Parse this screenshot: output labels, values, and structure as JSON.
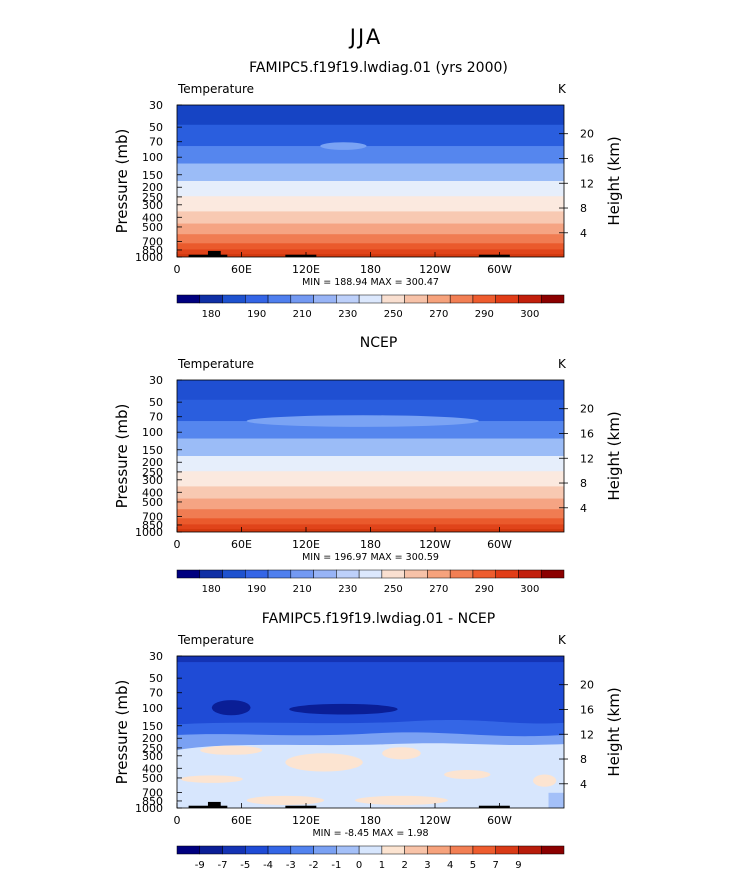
{
  "page": {
    "title": "JJA"
  },
  "chart_data": [
    {
      "type": "heatmap",
      "title": "FAMIPC5.f19f19.lwdiag.01 (yrs 2000)",
      "field_label": "Temperature",
      "units": "K",
      "ylabel": "Pressure (mb)",
      "y2label": "Height (km)",
      "xticks": [
        "0",
        "60E",
        "120E",
        "180",
        "120W",
        "60W"
      ],
      "yticks": [
        "30",
        "50",
        "70",
        "100",
        "150",
        "200",
        "250",
        "300",
        "400",
        "500",
        "700",
        "850",
        "1000"
      ],
      "y2ticks": [
        "20",
        "16",
        "12",
        "8",
        "4"
      ],
      "stats": "MIN = 188.94  MAX = 300.47",
      "colorbar": {
        "labels": [
          "180",
          "190",
          "210",
          "230",
          "250",
          "270",
          "290",
          "300"
        ],
        "colors": [
          "#00007f",
          "#0f2fa5",
          "#1e52cf",
          "#3465e6",
          "#4f7fee",
          "#7399f2",
          "#98b4f6",
          "#bdd0fa",
          "#dce8fd",
          "#f9dfd0",
          "#f7c2a8",
          "#f6a27c",
          "#f27f54",
          "#ee5c2e",
          "#e13d17",
          "#c21f0c",
          "#8b0000"
        ]
      },
      "zonal_levels": [
        [
          0.0,
          16
        ],
        [
          0.13,
          18
        ],
        [
          0.27,
          20
        ],
        [
          0.385,
          22
        ],
        [
          0.5,
          24
        ],
        [
          0.6,
          25
        ],
        [
          0.7,
          26
        ],
        [
          0.78,
          27
        ],
        [
          0.85,
          28
        ],
        [
          0.91,
          29
        ],
        [
          0.95,
          30
        ],
        [
          0.98,
          31
        ],
        [
          1.0,
          31
        ]
      ],
      "anomalies": [
        {
          "x": 0.43,
          "y": 0.27,
          "rx": 0.06,
          "ry": 0.012,
          "level": 21
        }
      ]
    },
    {
      "type": "heatmap",
      "title": "NCEP",
      "field_label": "Temperature",
      "units": "K",
      "ylabel": "Pressure (mb)",
      "y2label": "Height (km)",
      "xticks": [
        "0",
        "60E",
        "120E",
        "180",
        "120W",
        "60W"
      ],
      "yticks": [
        "30",
        "50",
        "70",
        "100",
        "150",
        "200",
        "250",
        "300",
        "400",
        "500",
        "700",
        "850",
        "1000"
      ],
      "y2ticks": [
        "20",
        "16",
        "12",
        "8",
        "4"
      ],
      "stats": "MIN = 196.97  MAX = 300.59",
      "colorbar": {
        "labels": [
          "180",
          "190",
          "210",
          "230",
          "250",
          "270",
          "290",
          "300"
        ],
        "colors": [
          "#00007f",
          "#0f2fa5",
          "#1e52cf",
          "#3465e6",
          "#4f7fee",
          "#7399f2",
          "#98b4f6",
          "#bdd0fa",
          "#dce8fd",
          "#f9dfd0",
          "#f7c2a8",
          "#f6a27c",
          "#f27f54",
          "#ee5c2e",
          "#e13d17",
          "#c21f0c",
          "#8b0000"
        ]
      },
      "zonal_levels": [
        [
          0.0,
          17
        ],
        [
          0.13,
          18
        ],
        [
          0.27,
          20
        ],
        [
          0.385,
          22
        ],
        [
          0.5,
          24
        ],
        [
          0.6,
          25
        ],
        [
          0.7,
          26
        ],
        [
          0.78,
          27
        ],
        [
          0.85,
          28
        ],
        [
          0.91,
          29
        ],
        [
          0.95,
          30
        ],
        [
          0.98,
          31
        ],
        [
          1.0,
          31
        ]
      ],
      "anomalies": [
        {
          "x": 0.48,
          "y": 0.27,
          "rx": 0.3,
          "ry": 0.025,
          "level": 21
        }
      ]
    },
    {
      "type": "heatmap",
      "title": "FAMIPC5.f19f19.lwdiag.01 - NCEP",
      "field_label": "Temperature",
      "units": "K",
      "ylabel": "Pressure (mb)",
      "y2label": "Height (km)",
      "xticks": [
        "0",
        "60E",
        "120E",
        "180",
        "120W",
        "60W"
      ],
      "yticks": [
        "30",
        "50",
        "70",
        "100",
        "150",
        "200",
        "250",
        "300",
        "400",
        "500",
        "700",
        "850",
        "1000"
      ],
      "y2ticks": [
        "20",
        "16",
        "12",
        "8",
        "4"
      ],
      "stats": "MIN =  -8.45  MAX =    1.98",
      "colorbar": {
        "labels": [
          "-9",
          "-7",
          "-5",
          "-4",
          "-3",
          "-2",
          "-1",
          "0",
          "1",
          "2",
          "3",
          "4",
          "5",
          "7",
          "9"
        ],
        "colors": [
          "#00007f",
          "#0a1e96",
          "#1433b4",
          "#1f4bd6",
          "#3466e6",
          "#5283ef",
          "#7aa1f3",
          "#a4c0f8",
          "#d7e6fd",
          "#fce4d1",
          "#f8c3a8",
          "#f6a27c",
          "#f27f54",
          "#ee5c2e",
          "#d93a16",
          "#b81c0b",
          "#8b0000"
        ]
      },
      "diff_regions": true
    }
  ]
}
